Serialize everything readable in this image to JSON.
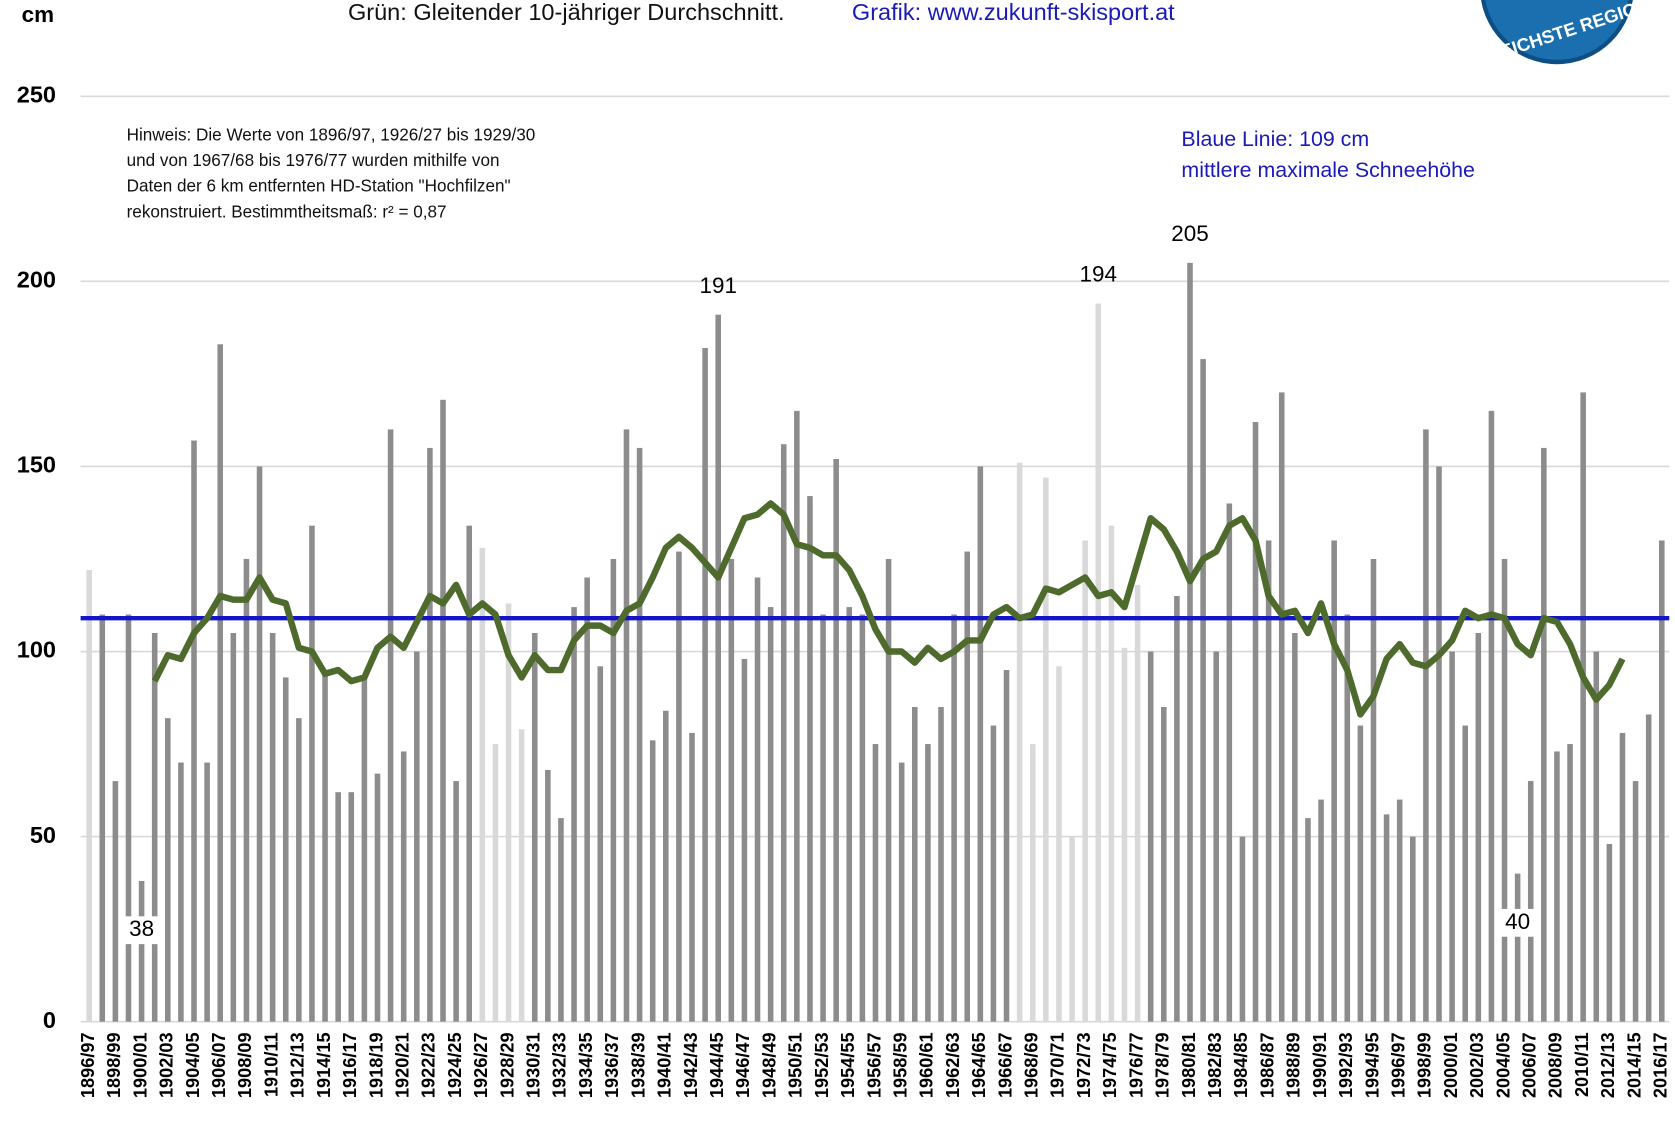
{
  "chart_data": {
    "type": "bar",
    "title": "Grün: Gleitender 10-jähriger Durchschnitt.",
    "title_link": "Grafik: www.zukunft-skisport.at",
    "unit": "cm",
    "note": [
      "Hinweis: Die Werte von 1896/97, 1926/27 bis 1929/30",
      "und von  1967/68 bis 1976/77 wurden mithilfe von",
      "Daten der 6 km entfernten HD-Station \"Hochfilzen\"",
      "rekonstruiert. Bestimmtheitsmaß: r² = 0,87"
    ],
    "mean_label": [
      "Blaue Linie: 109 cm",
      "mittlere maximale Schneehöhe"
    ],
    "logo_text": "EREICHSTE REGIO",
    "categories": [
      "1896/97",
      null,
      "1898/99",
      null,
      "1900/01",
      null,
      "1902/03",
      null,
      "1904/05",
      null,
      "1906/07",
      null,
      "1908/09",
      null,
      "1910/11",
      null,
      "1912/13",
      null,
      "1914/15",
      null,
      "1916/17",
      null,
      "1918/19",
      null,
      "1920/21",
      null,
      "1922/23",
      null,
      "1924/25",
      null,
      "1926/27",
      null,
      "1928/29",
      null,
      "1930/31",
      null,
      "1932/33",
      null,
      "1934/35",
      null,
      "1936/37",
      null,
      "1938/39",
      null,
      "1940/41",
      null,
      "1942/43",
      null,
      "1944/45",
      null,
      "1946/47",
      null,
      "1948/49",
      null,
      "1950/51",
      null,
      "1952/53",
      null,
      "1954/55",
      null,
      "1956/57",
      null,
      "1958/59",
      null,
      "1960/61",
      null,
      "1962/63",
      null,
      "1964/65",
      null,
      "1966/67",
      null,
      "1968/69",
      null,
      "1970/71",
      null,
      "1972/73",
      null,
      "1974/75",
      null,
      "1976/77",
      null,
      "1978/79",
      null,
      "1980/81",
      null,
      "1982/83",
      null,
      "1984/85",
      null,
      "1986/87",
      null,
      "1988/89",
      null,
      "1990/91",
      null,
      "1992/93",
      null,
      "1994/95",
      null,
      "1996/97",
      null,
      "1998/99",
      null,
      "2000/01",
      null,
      "2002/03",
      null,
      "2004/05",
      null,
      "2006/07",
      null,
      "2008/09",
      null,
      "2010/11",
      null,
      "2012/13",
      null,
      "2014/15",
      null,
      "2016/17"
    ],
    "series": [
      {
        "values": [
          122,
          110,
          65,
          110,
          38,
          105,
          82,
          70,
          157,
          70,
          183,
          105,
          125,
          150,
          105,
          93,
          82,
          134,
          95,
          62,
          62,
          93,
          67,
          160,
          73,
          100,
          155,
          168,
          65,
          134,
          128,
          75,
          113,
          79,
          105,
          68,
          55,
          112,
          120,
          96,
          125,
          160,
          155,
          76,
          84,
          127,
          78,
          182,
          191,
          125,
          98,
          120,
          112,
          156,
          165,
          142,
          110,
          152,
          112,
          110,
          75,
          125,
          70,
          85,
          75,
          85,
          110,
          127,
          150,
          80,
          95,
          151,
          75,
          147,
          96,
          50,
          130,
          194,
          134,
          101,
          118,
          100,
          85,
          115,
          205,
          179,
          100,
          140,
          50,
          162,
          130,
          170,
          105,
          55,
          60,
          130,
          110,
          80,
          125,
          56,
          60,
          50,
          160,
          150,
          100,
          80,
          105,
          165,
          125,
          40,
          65,
          155,
          73,
          75,
          170,
          100,
          48,
          78,
          65,
          83,
          130
        ],
        "colors": [
          "#d9d9d9",
          "#8c8c8c",
          "#8c8c8c",
          "#8c8c8c",
          "#8c8c8c",
          "#8c8c8c",
          "#8c8c8c",
          "#8c8c8c",
          "#8c8c8c",
          "#8c8c8c",
          "#8c8c8c",
          "#8c8c8c",
          "#8c8c8c",
          "#8c8c8c",
          "#8c8c8c",
          "#8c8c8c",
          "#8c8c8c",
          "#8c8c8c",
          "#8c8c8c",
          "#8c8c8c",
          "#8c8c8c",
          "#8c8c8c",
          "#8c8c8c",
          "#8c8c8c",
          "#8c8c8c",
          "#8c8c8c",
          "#8c8c8c",
          "#8c8c8c",
          "#8c8c8c",
          "#8c8c8c",
          "#d9d9d9",
          "#d9d9d9",
          "#d9d9d9",
          "#d9d9d9",
          "#8c8c8c",
          "#8c8c8c",
          "#8c8c8c",
          "#8c8c8c",
          "#8c8c8c",
          "#8c8c8c",
          "#8c8c8c",
          "#8c8c8c",
          "#8c8c8c",
          "#8c8c8c",
          "#8c8c8c",
          "#8c8c8c",
          "#8c8c8c",
          "#8c8c8c",
          "#8c8c8c",
          "#8c8c8c",
          "#8c8c8c",
          "#8c8c8c",
          "#8c8c8c",
          "#8c8c8c",
          "#8c8c8c",
          "#8c8c8c",
          "#8c8c8c",
          "#8c8c8c",
          "#8c8c8c",
          "#8c8c8c",
          "#8c8c8c",
          "#8c8c8c",
          "#8c8c8c",
          "#8c8c8c",
          "#8c8c8c",
          "#8c8c8c",
          "#8c8c8c",
          "#8c8c8c",
          "#8c8c8c",
          "#8c8c8c",
          "#8c8c8c",
          "#d9d9d9",
          "#d9d9d9",
          "#d9d9d9",
          "#d9d9d9",
          "#d9d9d9",
          "#d9d9d9",
          "#d9d9d9",
          "#d9d9d9",
          "#d9d9d9",
          "#d9d9d9",
          "#8c8c8c",
          "#8c8c8c",
          "#8c8c8c",
          "#8c8c8c",
          "#8c8c8c",
          "#8c8c8c",
          "#8c8c8c",
          "#8c8c8c",
          "#8c8c8c",
          "#8c8c8c",
          "#8c8c8c",
          "#8c8c8c",
          "#8c8c8c",
          "#8c8c8c",
          "#8c8c8c",
          "#8c8c8c",
          "#8c8c8c",
          "#8c8c8c",
          "#8c8c8c",
          "#8c8c8c",
          "#8c8c8c",
          "#8c8c8c",
          "#8c8c8c",
          "#8c8c8c",
          "#8c8c8c",
          "#8c8c8c",
          "#8c8c8c",
          "#8c8c8c",
          "#8c8c8c",
          "#8c8c8c",
          "#8c8c8c",
          "#8c8c8c",
          "#8c8c8c",
          "#8c8c8c",
          "#8c8c8c",
          "#8c8c8c",
          "#8c8c8c",
          "#8c8c8c",
          "#8c8c8c",
          "#8c8c8c"
        ],
        "labeled_bars": [
          4,
          48,
          77,
          84,
          109
        ]
      },
      {
        "type": "line",
        "color": "#4e6a2c",
        "values": [
          null,
          null,
          null,
          null,
          null,
          92,
          99,
          98,
          105,
          109,
          115,
          114,
          114,
          120,
          114,
          113,
          101,
          100,
          94,
          95,
          92,
          93,
          101,
          104,
          101,
          108,
          115,
          113,
          118,
          110,
          113,
          110,
          99,
          93,
          99,
          95,
          95,
          103,
          107,
          107,
          105,
          111,
          113,
          120,
          128,
          131,
          128,
          124,
          120,
          128,
          136,
          137,
          140,
          137,
          129,
          128,
          126,
          126,
          122,
          115,
          106,
          100,
          100,
          97,
          101,
          98,
          100,
          103,
          103,
          110,
          112,
          109,
          110,
          117,
          116,
          118,
          120,
          115,
          116,
          112,
          124,
          136,
          133,
          127,
          119,
          125,
          127,
          134,
          136,
          130,
          115,
          110,
          111,
          105,
          113,
          102,
          95,
          83,
          88,
          98,
          102,
          97,
          96,
          99,
          103,
          111,
          109,
          110,
          109,
          102,
          99,
          109,
          108,
          102,
          93,
          87,
          91,
          98,
          null,
          null,
          null
        ]
      }
    ],
    "mean_line": {
      "value": 109,
      "color": "#1414c8"
    },
    "ylim": [
      0,
      250
    ],
    "yticks": [
      0,
      50,
      100,
      150,
      200,
      250
    ],
    "grid": true
  }
}
